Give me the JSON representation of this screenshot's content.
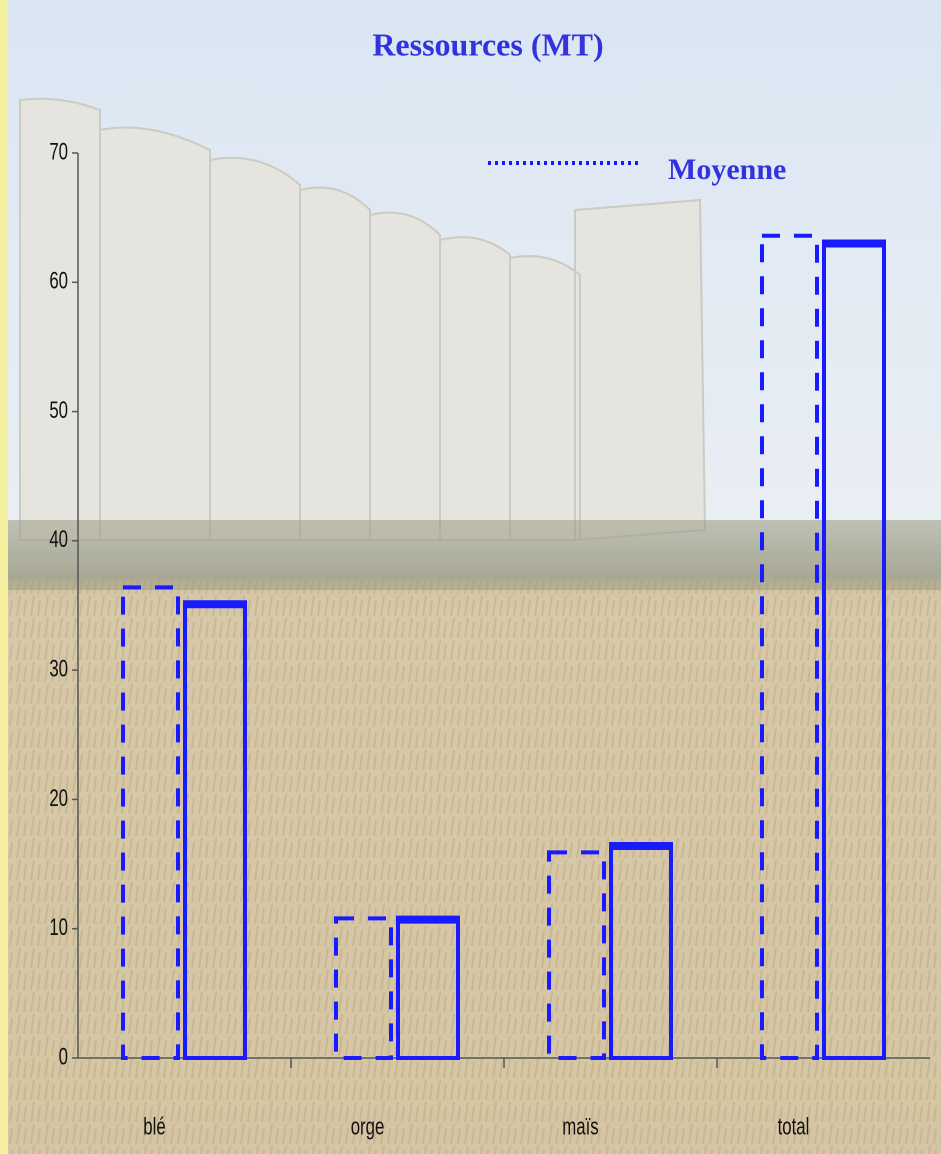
{
  "chart_data": {
    "type": "bar",
    "title": "Ressources (MT)",
    "categories": [
      "blé",
      "orge",
      "maïs",
      "total"
    ],
    "series": [
      {
        "name": "Moyenne",
        "color": "#1a1aff",
        "style": "dashed",
        "values": [
          36.4,
          10.8,
          15.9,
          63.6
        ]
      },
      {
        "color": "#1a1aff",
        "style": "solid",
        "values": [
          35.1,
          10.7,
          16.4,
          63.0
        ]
      }
    ],
    "ylim": [
      0,
      70
    ],
    "yticks": [
      0,
      10,
      20,
      30,
      40,
      50,
      60,
      70
    ],
    "grid": false
  }
}
